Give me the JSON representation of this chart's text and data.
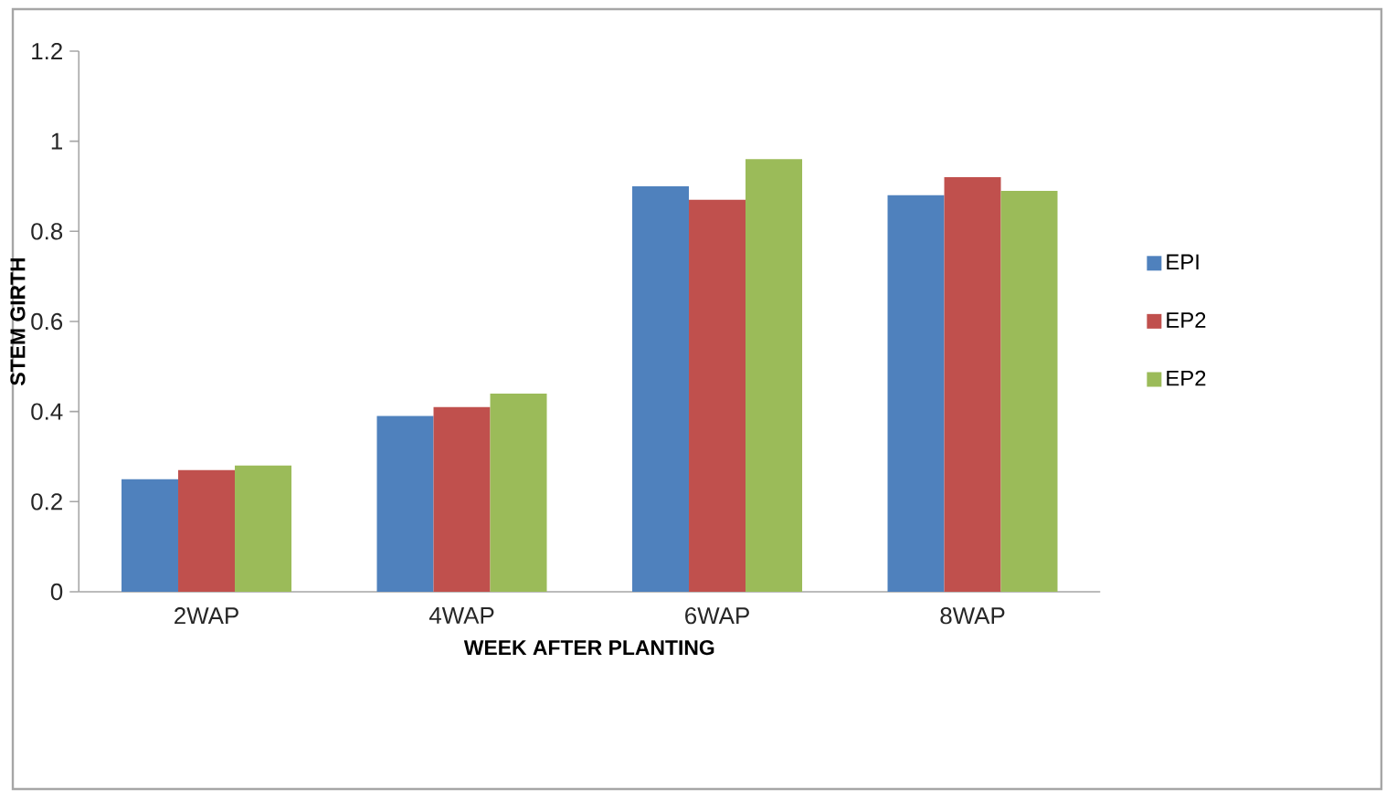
{
  "chart_data": {
    "type": "bar",
    "xlabel": "WEEK AFTER PLANTING",
    "ylabel": "STEM GIRTH",
    "categories": [
      "2WAP",
      "4WAP",
      "6WAP",
      "8WAP"
    ],
    "series": [
      {
        "name": "EPI",
        "color": "#4f81bd",
        "values": [
          0.25,
          0.39,
          0.9,
          0.88
        ]
      },
      {
        "name": "EP2",
        "color": "#c0504d",
        "values": [
          0.27,
          0.41,
          0.87,
          0.92
        ]
      },
      {
        "name": "EP2",
        "color": "#9bbb59",
        "values": [
          0.28,
          0.44,
          0.96,
          0.89
        ]
      }
    ],
    "ylim": [
      0,
      1.2
    ],
    "yticks": [
      0,
      0.2,
      0.4,
      0.6,
      0.8,
      1,
      1.2
    ],
    "grid": false,
    "legend": "right"
  }
}
